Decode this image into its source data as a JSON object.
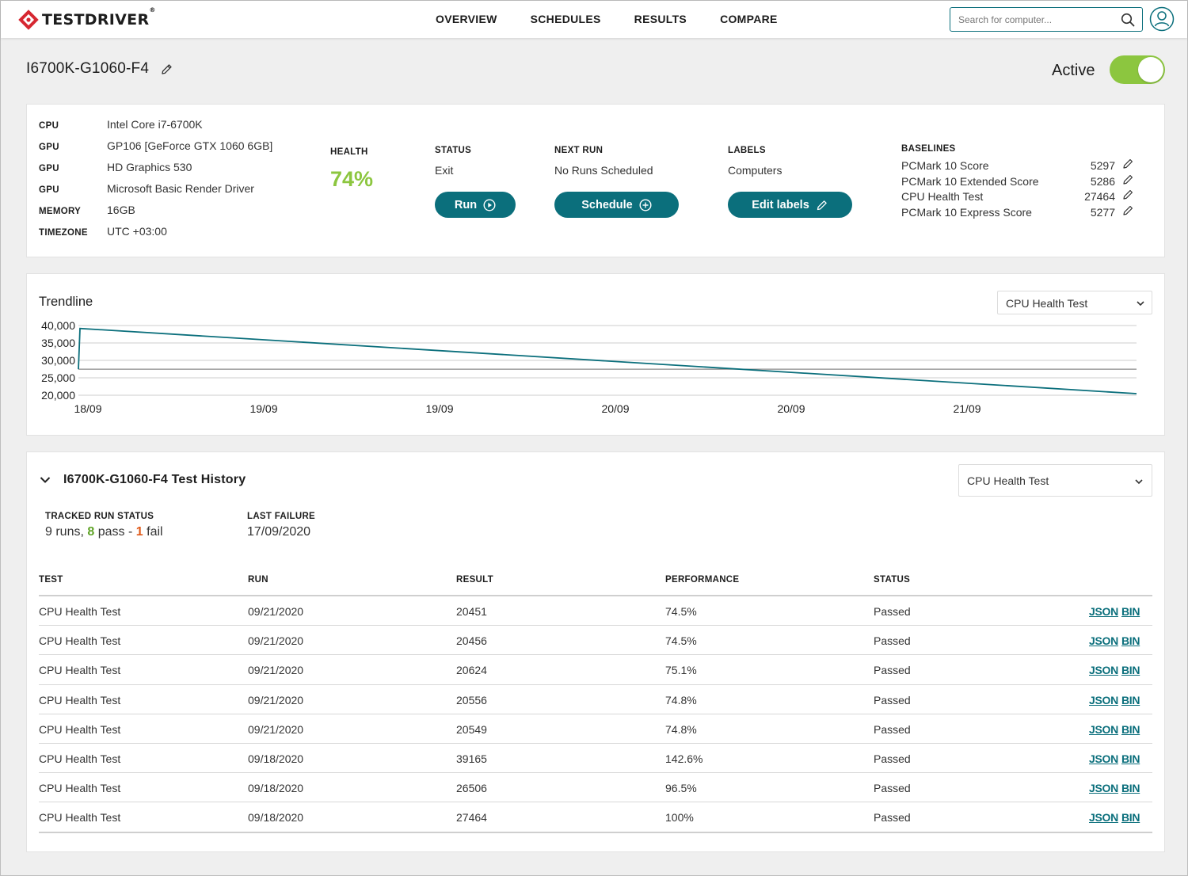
{
  "header": {
    "brand": "TESTDRIVER",
    "brand_mark": "®",
    "nav": [
      "OVERVIEW",
      "SCHEDULES",
      "RESULTS",
      "COMPARE"
    ],
    "search_placeholder": "Search for computer..."
  },
  "computer": {
    "name": "I6700K-G1060-F4",
    "active_label": "Active",
    "active": true
  },
  "specs": [
    {
      "key": "CPU",
      "value": "Intel Core i7-6700K"
    },
    {
      "key": "GPU",
      "value": "GP106 [GeForce GTX 1060 6GB]"
    },
    {
      "key": "GPU",
      "value": "HD Graphics 530"
    },
    {
      "key": "GPU",
      "value": "Microsoft Basic Render Driver"
    },
    {
      "key": "MEMORY",
      "value": "16GB"
    },
    {
      "key": "TIMEZONE",
      "value": "UTC +03:00"
    }
  ],
  "health": {
    "label": "HEALTH",
    "value": "74%",
    "color": "#8cc63f"
  },
  "status": {
    "label": "STATUS",
    "value": "Exit",
    "button": "Run"
  },
  "next_run": {
    "label": "NEXT RUN",
    "value": "No Runs Scheduled",
    "button": "Schedule"
  },
  "labels": {
    "label": "LABELS",
    "value": "Computers",
    "button": "Edit labels"
  },
  "baselines": {
    "label": "BASELINES",
    "items": [
      {
        "name": "PCMark 10 Score",
        "value": "5297"
      },
      {
        "name": "PCMark 10 Extended Score",
        "value": "5286"
      },
      {
        "name": "CPU Health Test",
        "value": "27464"
      },
      {
        "name": "PCMark 10 Express Score",
        "value": "5277"
      }
    ]
  },
  "trendline": {
    "title": "Trendline",
    "selected": "CPU Health Test"
  },
  "chart_data": {
    "type": "line",
    "title": "",
    "xlabel": "",
    "ylabel": "",
    "x_tick_labels": [
      "18/09",
      "19/09",
      "19/09",
      "20/09",
      "20/09",
      "21/09"
    ],
    "y_tick_labels": [
      "40,000",
      "35,000",
      "30,000",
      "25,000",
      "20,000"
    ],
    "y_ticks": [
      40000,
      35000,
      30000,
      25000,
      20000
    ],
    "ylim": [
      20000,
      40000
    ],
    "baseline": 27464,
    "series": [
      {
        "values": [
          27464,
          39165,
          20451
        ],
        "color": "#0b6f7c"
      }
    ],
    "grid": true
  },
  "history": {
    "title": "I6700K-G1060-F4 Test History",
    "selected": "CPU Health Test",
    "tracked_label": "TRACKED RUN STATUS",
    "runs_text": "9 runs,",
    "pass_count": "8",
    "pass_text": "pass -",
    "fail_count": "1",
    "fail_text": "fail",
    "last_failure_label": "LAST FAILURE",
    "last_failure": "17/09/2020",
    "columns": [
      "TEST",
      "RUN",
      "RESULT",
      "PERFORMANCE",
      "STATUS"
    ],
    "link_json": "JSON",
    "link_bin": "BIN",
    "rows": [
      {
        "test": "CPU Health Test",
        "run": "09/21/2020",
        "result": "20451",
        "performance": "74.5%",
        "status": "Passed"
      },
      {
        "test": "CPU Health Test",
        "run": "09/21/2020",
        "result": "20456",
        "performance": "74.5%",
        "status": "Passed"
      },
      {
        "test": "CPU Health Test",
        "run": "09/21/2020",
        "result": "20624",
        "performance": "75.1%",
        "status": "Passed"
      },
      {
        "test": "CPU Health Test",
        "run": "09/21/2020",
        "result": "20556",
        "performance": "74.8%",
        "status": "Passed"
      },
      {
        "test": "CPU Health Test",
        "run": "09/21/2020",
        "result": "20549",
        "performance": "74.8%",
        "status": "Passed"
      },
      {
        "test": "CPU Health Test",
        "run": "09/18/2020",
        "result": "39165",
        "performance": "142.6%",
        "status": "Passed"
      },
      {
        "test": "CPU Health Test",
        "run": "09/18/2020",
        "result": "26506",
        "performance": "96.5%",
        "status": "Passed"
      },
      {
        "test": "CPU Health Test",
        "run": "09/18/2020",
        "result": "27464",
        "performance": "100%",
        "status": "Passed"
      }
    ]
  },
  "colors": {
    "accent": "#0b6f7c",
    "health": "#8cc63f",
    "pass": "#5fa327",
    "fail": "#e05a1a",
    "logo": "#d62731"
  }
}
